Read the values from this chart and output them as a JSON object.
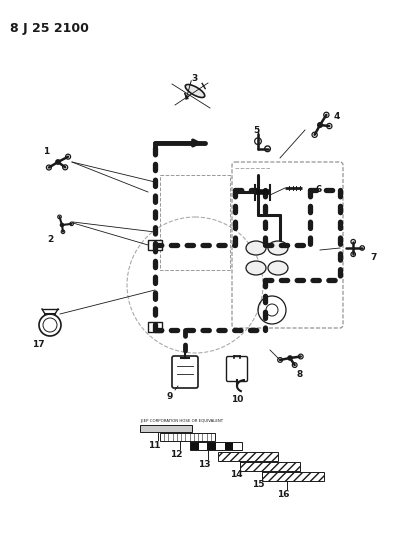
{
  "title": "8 J 25 2100",
  "bg_color": "#ffffff",
  "lc": "#1a1a1a",
  "fig_width": 3.98,
  "fig_height": 5.33,
  "dpi": 100,
  "components": {
    "label_fontsize": 6.5,
    "title_fontsize": 9
  }
}
